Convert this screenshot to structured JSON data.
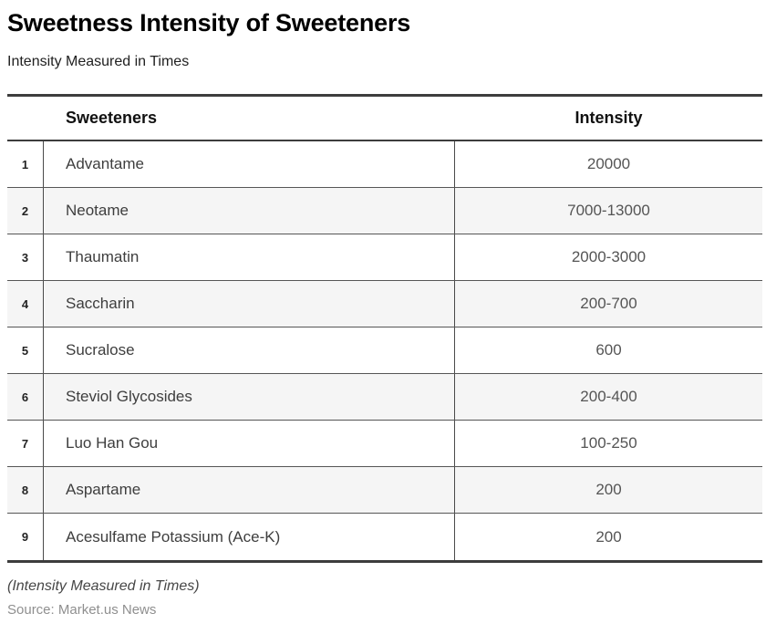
{
  "page": {
    "title": "Sweetness Intensity of Sweeteners",
    "subtitle": "Intensity Measured in Times"
  },
  "table": {
    "columns": {
      "sweetener": "Sweeteners",
      "intensity": "Intensity"
    },
    "rows": [
      {
        "index": "1",
        "sweetener": "Advantame",
        "intensity": "20000"
      },
      {
        "index": "2",
        "sweetener": "Neotame",
        "intensity": "7000-13000"
      },
      {
        "index": "3",
        "sweetener": "Thaumatin",
        "intensity": "2000-3000"
      },
      {
        "index": "4",
        "sweetener": "Saccharin",
        "intensity": "200-700"
      },
      {
        "index": "5",
        "sweetener": "Sucralose",
        "intensity": "600"
      },
      {
        "index": "6",
        "sweetener": "Steviol Glycosides",
        "intensity": "200-400"
      },
      {
        "index": "7",
        "sweetener": "Luo Han Gou",
        "intensity": "100-250"
      },
      {
        "index": "8",
        "sweetener": "Aspartame",
        "intensity": "200"
      },
      {
        "index": "9",
        "sweetener": "Acesulfame Potassium (Ace-K)",
        "intensity": "200"
      }
    ]
  },
  "footer": {
    "note": "(Intensity Measured in Times)",
    "source": "Source: Market.us News"
  },
  "colors": {
    "stripe_bg": "#f5f5f5",
    "border_heavy": "#3d3d3d",
    "border_light": "#565656",
    "title_text": "#000000",
    "header_text": "#111111",
    "body_text": "#3e3e3e",
    "value_text": "#555555",
    "note_text": "#474747",
    "source_text": "#8f8f8f"
  },
  "chart_data": {
    "type": "table",
    "title": "Sweetness Intensity of Sweeteners",
    "subtitle": "Intensity Measured in Times",
    "columns": [
      "Sweeteners",
      "Intensity"
    ],
    "rows": [
      [
        "Advantame",
        "20000"
      ],
      [
        "Neotame",
        "7000-13000"
      ],
      [
        "Thaumatin",
        "2000-3000"
      ],
      [
        "Saccharin",
        "200-700"
      ],
      [
        "Sucralose",
        "600"
      ],
      [
        "Steviol Glycosides",
        "200-400"
      ],
      [
        "Luo Han Gou",
        "100-250"
      ],
      [
        "Aspartame",
        "200"
      ],
      [
        "Acesulfame Potassium (Ace-K)",
        "200"
      ]
    ],
    "note": "(Intensity Measured in Times)",
    "source": "Source: Market.us News",
    "layout": {
      "striped_rows": "even",
      "row_numbers": true,
      "intensity_align": "center"
    }
  }
}
